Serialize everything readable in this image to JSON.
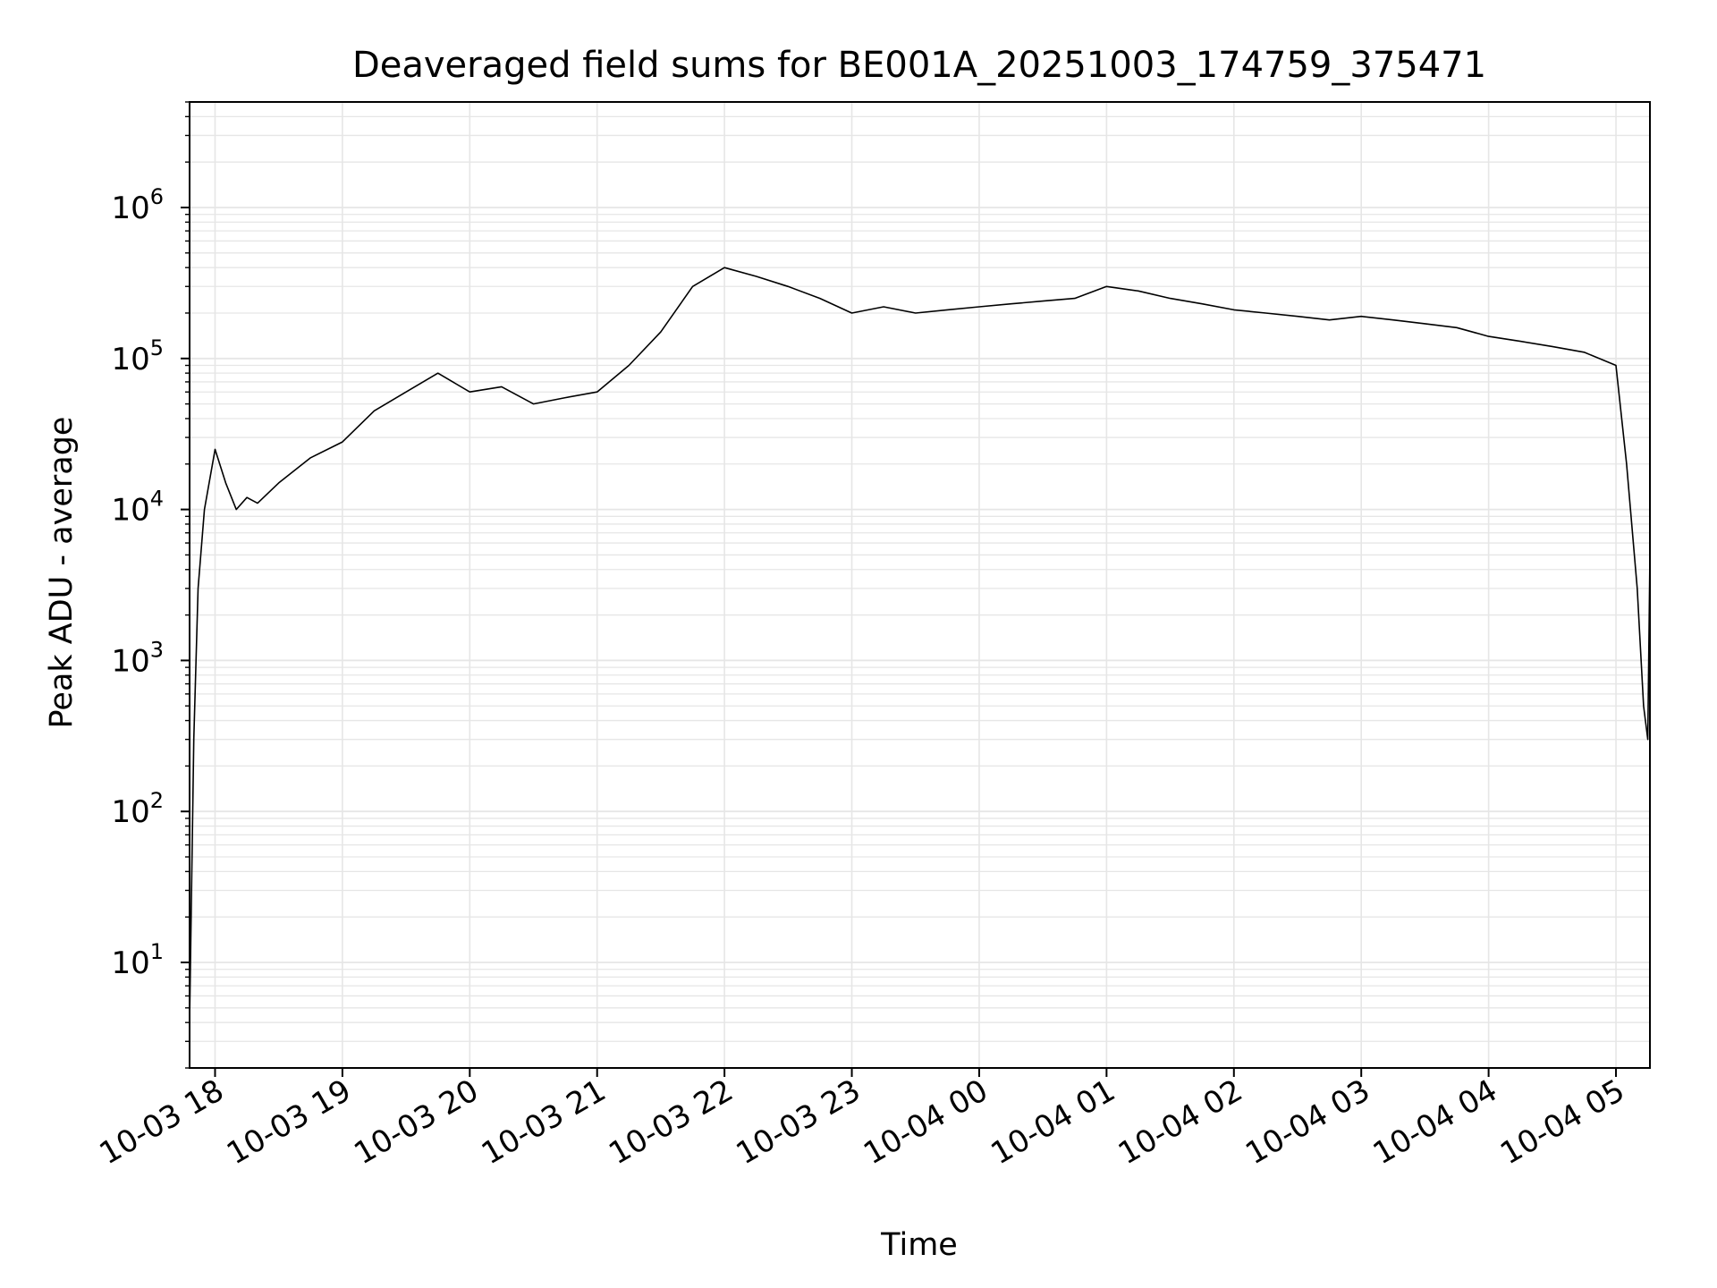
{
  "chart_data": {
    "type": "line",
    "title": "Deaveraged field sums for BE001A_20251003_174759_375471",
    "xlabel": "Time",
    "ylabel": "Peak ADU - average",
    "y_scale": "log",
    "ylim": [
      2,
      5000000
    ],
    "xlim": [
      "2025-10-03 17:48",
      "2025-10-04 05:16"
    ],
    "grid": true,
    "line_color": "#000000",
    "grid_color": "#e6e6e6",
    "x_ticks": [
      {
        "t": "2025-10-03 18:00",
        "label": "10-03 18"
      },
      {
        "t": "2025-10-03 19:00",
        "label": "10-03 19"
      },
      {
        "t": "2025-10-03 20:00",
        "label": "10-03 20"
      },
      {
        "t": "2025-10-03 21:00",
        "label": "10-03 21"
      },
      {
        "t": "2025-10-03 22:00",
        "label": "10-03 22"
      },
      {
        "t": "2025-10-03 23:00",
        "label": "10-03 23"
      },
      {
        "t": "2025-10-04 00:00",
        "label": "10-04 00"
      },
      {
        "t": "2025-10-04 01:00",
        "label": "10-04 01"
      },
      {
        "t": "2025-10-04 02:00",
        "label": "10-04 02"
      },
      {
        "t": "2025-10-04 03:00",
        "label": "10-04 03"
      },
      {
        "t": "2025-10-04 04:00",
        "label": "10-04 04"
      },
      {
        "t": "2025-10-04 05:00",
        "label": "10-04 05"
      }
    ],
    "y_ticks": [
      {
        "value": 10,
        "base": "10",
        "exp": "1"
      },
      {
        "value": 100,
        "base": "10",
        "exp": "2"
      },
      {
        "value": 1000,
        "base": "10",
        "exp": "3"
      },
      {
        "value": 10000,
        "base": "10",
        "exp": "4"
      },
      {
        "value": 100000,
        "base": "10",
        "exp": "5"
      },
      {
        "value": 1000000,
        "base": "10",
        "exp": "6"
      }
    ],
    "series": [
      {
        "x": [
          "2025-10-03 17:48",
          "2025-10-03 17:50",
          "2025-10-03 17:52",
          "2025-10-03 17:55",
          "2025-10-03 18:00",
          "2025-10-03 18:05",
          "2025-10-03 18:10",
          "2025-10-03 18:15",
          "2025-10-03 18:20",
          "2025-10-03 18:30",
          "2025-10-03 18:45",
          "2025-10-03 19:00",
          "2025-10-03 19:15",
          "2025-10-03 19:30",
          "2025-10-03 19:45",
          "2025-10-03 20:00",
          "2025-10-03 20:15",
          "2025-10-03 20:30",
          "2025-10-03 20:45",
          "2025-10-03 21:00",
          "2025-10-03 21:15",
          "2025-10-03 21:30",
          "2025-10-03 21:45",
          "2025-10-03 22:00",
          "2025-10-03 22:15",
          "2025-10-03 22:30",
          "2025-10-03 22:45",
          "2025-10-03 23:00",
          "2025-10-03 23:15",
          "2025-10-03 23:30",
          "2025-10-03 23:45",
          "2025-10-04 00:00",
          "2025-10-04 00:15",
          "2025-10-04 00:30",
          "2025-10-04 00:45",
          "2025-10-04 01:00",
          "2025-10-04 01:15",
          "2025-10-04 01:30",
          "2025-10-04 01:45",
          "2025-10-04 02:00",
          "2025-10-04 02:15",
          "2025-10-04 02:30",
          "2025-10-04 02:45",
          "2025-10-04 03:00",
          "2025-10-04 03:15",
          "2025-10-04 03:30",
          "2025-10-04 03:45",
          "2025-10-04 04:00",
          "2025-10-04 04:15",
          "2025-10-04 04:30",
          "2025-10-04 04:45",
          "2025-10-04 05:00",
          "2025-10-04 05:05",
          "2025-10-04 05:10",
          "2025-10-04 05:13",
          "2025-10-04 05:15",
          "2025-10-04 05:16"
        ],
        "y": [
          4,
          300,
          3000,
          10000,
          25000,
          15000,
          10000,
          12000,
          11000,
          15000,
          22000,
          28000,
          45000,
          60000,
          80000,
          60000,
          65000,
          50000,
          55000,
          60000,
          90000,
          150000,
          300000,
          400000,
          350000,
          300000,
          250000,
          200000,
          220000,
          200000,
          210000,
          220000,
          230000,
          240000,
          250000,
          300000,
          280000,
          250000,
          230000,
          210000,
          200000,
          190000,
          180000,
          190000,
          180000,
          170000,
          160000,
          140000,
          130000,
          120000,
          110000,
          90000,
          20000,
          3000,
          500,
          300,
          5000
        ]
      }
    ]
  }
}
